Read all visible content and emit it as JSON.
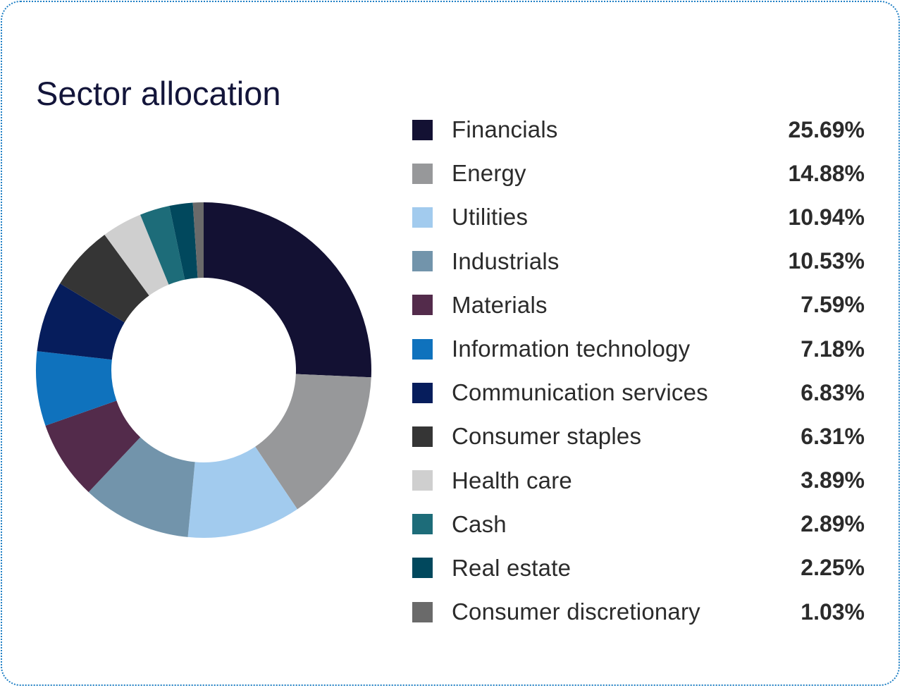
{
  "chart_data": {
    "type": "pie",
    "title": "Sector allocation",
    "donut": true,
    "legend_position": "right",
    "categories": [
      "Financials",
      "Energy",
      "Utilities",
      "Industrials",
      "Materials",
      "Information technology",
      "Communication services",
      "Consumer staples",
      "Health care",
      "Cash",
      "Real estate",
      "Consumer discretionary"
    ],
    "values": [
      25.69,
      14.88,
      10.94,
      10.53,
      7.59,
      7.18,
      6.83,
      6.31,
      3.89,
      2.89,
      2.25,
      1.03
    ],
    "value_labels": [
      "25.69%",
      "14.88%",
      "10.94%",
      "10.53%",
      "7.59%",
      "7.18%",
      "6.83%",
      "6.31%",
      "3.89%",
      "2.89%",
      "2.25%",
      "1.03%"
    ],
    "colors": [
      "#131133",
      "#97989a",
      "#a2cbee",
      "#7294ab",
      "#532b4b",
      "#0f72bd",
      "#061d5c",
      "#353535",
      "#cfcfcf",
      "#1d6c79",
      "#01485d",
      "#6a6a6a"
    ],
    "unit": "%"
  }
}
